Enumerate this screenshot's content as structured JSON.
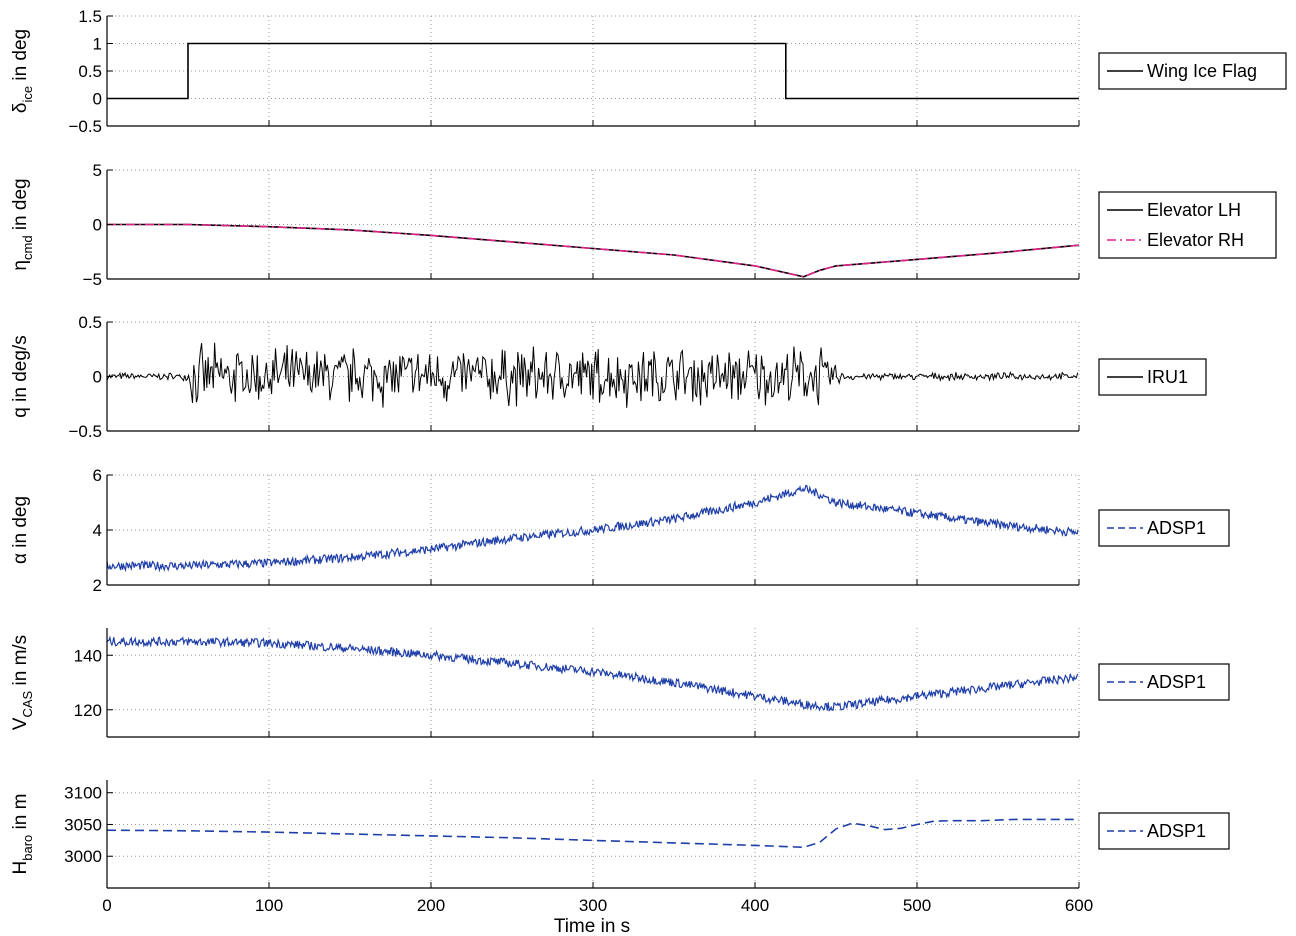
{
  "chart_data": [
    {
      "type": "line",
      "ylabel": {
        "sym": "δ",
        "sub": "ice",
        "units": "in deg"
      },
      "xlim": [
        0,
        600
      ],
      "ylim": [
        -0.5,
        1.5
      ],
      "yticks": [
        "1.5",
        "1",
        "0.5",
        "0",
        "−0.5"
      ],
      "ytick_values": [
        1.5,
        1,
        0.5,
        0,
        -0.5
      ],
      "legend": {
        "position": "right",
        "entries": [
          {
            "label": "Wing Ice Flag",
            "style": "solid",
            "color": "#000000"
          }
        ]
      },
      "series": [
        {
          "name": "Wing Ice Flag",
          "color": "#000000",
          "style": "solid",
          "shape": "step",
          "x": [
            0,
            50,
            50,
            419,
            419,
            600
          ],
          "y": [
            0,
            0,
            1,
            1,
            0,
            0
          ]
        }
      ]
    },
    {
      "type": "line",
      "ylabel": {
        "sym": "η",
        "sub": "cmd",
        "units": "in deg"
      },
      "xlim": [
        0,
        600
      ],
      "ylim": [
        -5,
        5
      ],
      "yticks": [
        "5",
        "0",
        "−5"
      ],
      "ytick_values": [
        5,
        0,
        -5
      ],
      "legend": {
        "position": "right",
        "entries": [
          {
            "label": "Elevator LH",
            "style": "solid",
            "color": "#000000"
          },
          {
            "label": "Elevator RH",
            "style": "dashdot",
            "color": "#e0218a"
          }
        ]
      },
      "series": [
        {
          "name": "Elevator LH",
          "color": "#000000",
          "style": "solid",
          "x": [
            0,
            50,
            100,
            150,
            200,
            250,
            300,
            350,
            400,
            430,
            440,
            450,
            500,
            550,
            600
          ],
          "y": [
            0,
            0,
            -0.2,
            -0.5,
            -1.0,
            -1.6,
            -2.2,
            -2.8,
            -3.8,
            -4.8,
            -4.2,
            -3.8,
            -3.2,
            -2.6,
            -1.9
          ]
        },
        {
          "name": "Elevator RH",
          "color": "#e0218a",
          "style": "dashdot",
          "x": [
            0,
            50,
            100,
            150,
            200,
            250,
            300,
            350,
            400,
            430,
            440,
            450,
            500,
            550,
            600
          ],
          "y": [
            0,
            0,
            -0.2,
            -0.5,
            -1.0,
            -1.6,
            -2.2,
            -2.8,
            -3.8,
            -4.8,
            -4.2,
            -3.8,
            -3.2,
            -2.6,
            -1.9
          ]
        }
      ]
    },
    {
      "type": "line",
      "ylabel": {
        "sym": "q",
        "sub": "",
        "units": "in deg/s"
      },
      "xlim": [
        0,
        600
      ],
      "ylim": [
        -0.5,
        0.5
      ],
      "yticks": [
        "0.5",
        "0",
        "−0.5"
      ],
      "ytick_values": [
        0.5,
        0,
        -0.5
      ],
      "legend": {
        "position": "right",
        "entries": [
          {
            "label": "IRU1",
            "style": "solid",
            "color": "#000000"
          }
        ]
      },
      "series": [
        {
          "name": "IRU1",
          "color": "#000000",
          "style": "solid",
          "shape": "noise",
          "x": [
            0,
            50,
            52,
            440,
            455,
            600
          ],
          "y": [
            0,
            0,
            0,
            0,
            0,
            0
          ],
          "amplitude": [
            0.04,
            0.04,
            0.32,
            0.32,
            0.04,
            0.04
          ]
        }
      ]
    },
    {
      "type": "line",
      "ylabel": {
        "sym": "α",
        "sub": "",
        "units": "in deg"
      },
      "xlim": [
        0,
        600
      ],
      "ylim": [
        2,
        6
      ],
      "yticks": [
        "6",
        "4",
        "2"
      ],
      "ytick_values": [
        6,
        4,
        2
      ],
      "legend": {
        "position": "right",
        "entries": [
          {
            "label": "ADSP1",
            "style": "dashed",
            "color": "#1f3fa8"
          }
        ]
      },
      "series": [
        {
          "name": "ADSP1",
          "color": "#1f3fa8",
          "style": "dashed",
          "shape": "band",
          "band": 0.16,
          "x": [
            0,
            50,
            100,
            150,
            200,
            250,
            300,
            350,
            400,
            430,
            440,
            450,
            500,
            550,
            600
          ],
          "y": [
            2.7,
            2.7,
            2.8,
            3.0,
            3.3,
            3.7,
            4.0,
            4.4,
            5.0,
            5.5,
            5.3,
            5.0,
            4.6,
            4.2,
            3.9
          ]
        }
      ]
    },
    {
      "type": "line",
      "ylabel": {
        "sym": "V",
        "sub": "CAS",
        "units": "in m/s"
      },
      "xlim": [
        0,
        600
      ],
      "ylim": [
        110,
        150
      ],
      "yticks": [
        "140",
        "120"
      ],
      "ytick_values": [
        140,
        120
      ],
      "legend": {
        "position": "right",
        "entries": [
          {
            "label": "ADSP1",
            "style": "dashed",
            "color": "#1f3fa8"
          }
        ]
      },
      "series": [
        {
          "name": "ADSP1",
          "color": "#1f3fa8",
          "style": "dashed",
          "shape": "band",
          "band": 1.6,
          "x": [
            0,
            50,
            100,
            150,
            200,
            250,
            300,
            350,
            400,
            430,
            450,
            500,
            550,
            600
          ],
          "y": [
            145,
            145,
            144.5,
            142.5,
            140,
            137,
            134,
            130,
            125,
            122,
            121,
            125,
            128.5,
            132
          ]
        }
      ]
    },
    {
      "type": "line",
      "ylabel": {
        "sym": "H",
        "sub": "baro",
        "units": "in m"
      },
      "xlim": [
        0,
        600
      ],
      "ylim": [
        2950,
        3120
      ],
      "yticks": [
        "3100",
        "3050",
        "3000"
      ],
      "ytick_values": [
        3100,
        3050,
        3000
      ],
      "legend": {
        "position": "right",
        "entries": [
          {
            "label": "ADSP1",
            "style": "dashed",
            "color": "#1f3fa8"
          }
        ]
      },
      "series": [
        {
          "name": "ADSP1",
          "color": "#1f3fa8",
          "style": "dashed",
          "x": [
            0,
            50,
            100,
            150,
            200,
            250,
            300,
            350,
            400,
            430,
            440,
            450,
            460,
            470,
            480,
            490,
            500,
            510,
            520,
            540,
            560,
            600
          ],
          "y": [
            3041,
            3040,
            3038,
            3035,
            3032,
            3029,
            3025,
            3021,
            3017,
            3014,
            3022,
            3043,
            3052,
            3048,
            3042,
            3044,
            3050,
            3055,
            3056,
            3056,
            3058,
            3058
          ]
        }
      ]
    }
  ],
  "x_axis": {
    "label": "Time  in  s",
    "ticks": [
      "0",
      "100",
      "200",
      "300",
      "400",
      "500",
      "600"
    ],
    "tick_values": [
      0,
      100,
      200,
      300,
      400,
      500,
      600
    ]
  }
}
